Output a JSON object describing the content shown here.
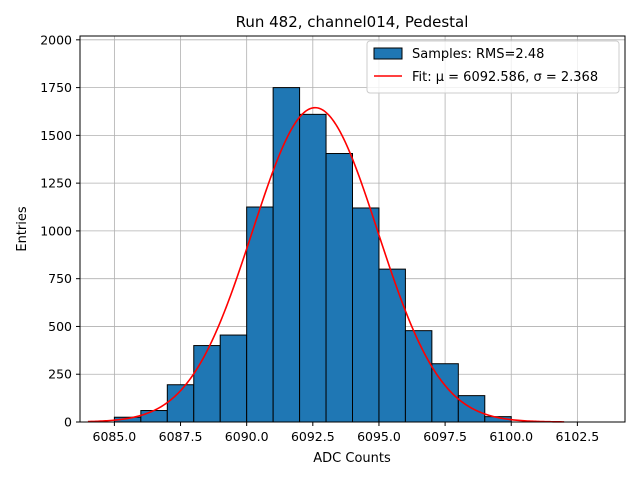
{
  "chart_data": {
    "type": "bar",
    "title": "Run 482, channel014, Pedestal",
    "xlabel": "ADC Counts",
    "ylabel": "Entries",
    "xlim": [
      6083.7,
      6104.3
    ],
    "ylim": [
      0,
      2020
    ],
    "grid": true,
    "legend_position": "top-right",
    "x_ticks": [
      6085.0,
      6087.5,
      6090.0,
      6092.5,
      6095.0,
      6097.5,
      6100.0,
      6102.5
    ],
    "x_tick_labels": [
      "6085.0",
      "6087.5",
      "6090.0",
      "6092.5",
      "6095.0",
      "6097.5",
      "6100.0",
      "6102.5"
    ],
    "y_ticks": [
      0,
      250,
      500,
      750,
      1000,
      1250,
      1500,
      1750,
      2000
    ],
    "y_tick_labels": [
      "0",
      "250",
      "500",
      "750",
      "1000",
      "1250",
      "1500",
      "1750",
      "2000"
    ],
    "bin_width": 1.0,
    "bins": [
      {
        "left": 6085,
        "value": 25
      },
      {
        "left": 6086,
        "value": 60
      },
      {
        "left": 6087,
        "value": 195
      },
      {
        "left": 6088,
        "value": 400
      },
      {
        "left": 6089,
        "value": 455
      },
      {
        "left": 6090,
        "value": 1125
      },
      {
        "left": 6091,
        "value": 1750
      },
      {
        "left": 6092,
        "value": 1610
      },
      {
        "left": 6093,
        "value": 1405
      },
      {
        "left": 6094,
        "value": 1120
      },
      {
        "left": 6095,
        "value": 800
      },
      {
        "left": 6096,
        "value": 478
      },
      {
        "left": 6097,
        "value": 305
      },
      {
        "left": 6098,
        "value": 138
      },
      {
        "left": 6099,
        "value": 28
      }
    ],
    "fit": {
      "mu": 6092.586,
      "sigma": 2.368,
      "amplitude": 1645,
      "x_range": [
        6084,
        6102
      ]
    },
    "series": [
      {
        "name": "Samples: RMS=2.48",
        "kind": "histogram",
        "color": "#1f77b4"
      },
      {
        "name": "Fit: μ = 6092.586, σ = 2.368",
        "kind": "line",
        "color": "#ff0000"
      }
    ]
  }
}
